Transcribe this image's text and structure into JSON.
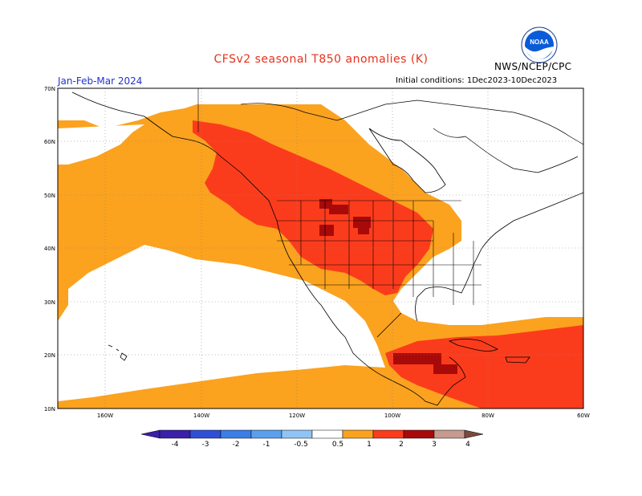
{
  "header": {
    "title": "CFSv2 seasonal T850 anomalies (K)",
    "season": "Jan-Feb-Mar 2024",
    "agency": "NWS/NCEP/CPC",
    "initial_conditions": "Initial conditions: 1Dec2023-10Dec2023",
    "logo_text": "NOAA"
  },
  "map": {
    "lat_labels": [
      "70N",
      "60N",
      "50N",
      "40N",
      "30N",
      "20N",
      "10N"
    ],
    "lon_labels": [
      "160W",
      "140W",
      "120W",
      "100W",
      "80W",
      "60W"
    ]
  },
  "colorbar": {
    "labels": [
      "-4",
      "-3",
      "-2",
      "-1",
      "-0.5",
      "0.5",
      "1",
      "2",
      "3",
      "4"
    ],
    "colors": [
      "#3a1fa8",
      "#2f4fd6",
      "#3a7ee6",
      "#5aa0ef",
      "#8fc4f5",
      "#ffffff",
      "#fba21f",
      "#fb3c1c",
      "#a80a0a",
      "#c69a8e",
      "#7a4a3e"
    ]
  }
}
